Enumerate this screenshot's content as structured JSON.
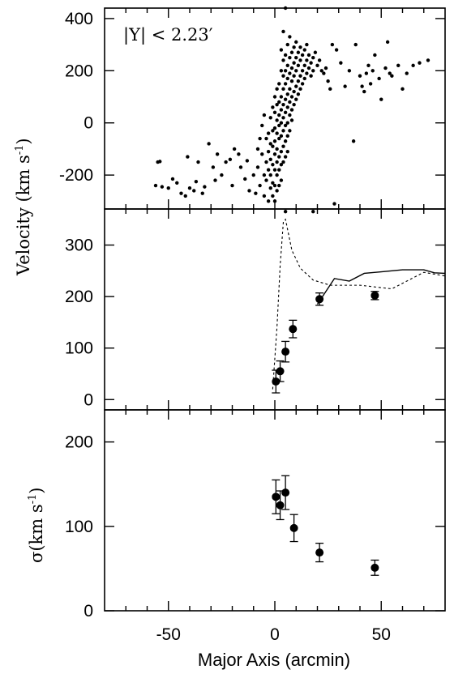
{
  "chart_data": [
    {
      "type": "scatter",
      "panel": "top",
      "annotation": "|Y| < 2.23′",
      "xlim": [
        -80,
        80
      ],
      "ylim": [
        -330,
        440
      ],
      "yticks": [
        400,
        200,
        0,
        -200
      ],
      "ytick_labels": [
        "400",
        "200",
        "0",
        "-200"
      ],
      "ylabel_main": "Velocity (km s",
      "ylabel_sup": "-1",
      "ylabel_close": ")",
      "points": [
        [
          -55,
          -150
        ],
        [
          -54,
          -148
        ],
        [
          -56,
          -240
        ],
        [
          -53,
          -245
        ],
        [
          -50,
          -250
        ],
        [
          -48,
          -215
        ],
        [
          -46,
          -230
        ],
        [
          -44,
          -270
        ],
        [
          -42,
          -280
        ],
        [
          -41,
          -130
        ],
        [
          -40,
          -250
        ],
        [
          -38,
          -260
        ],
        [
          -37,
          -225
        ],
        [
          -36,
          -150
        ],
        [
          -34,
          -270
        ],
        [
          -33,
          -245
        ],
        [
          -31,
          -80
        ],
        [
          -29,
          -170
        ],
        [
          -28,
          -220
        ],
        [
          -27,
          -120
        ],
        [
          -25,
          -200
        ],
        [
          -23,
          -150
        ],
        [
          -21,
          -140
        ],
        [
          -20,
          -240
        ],
        [
          -19,
          -100
        ],
        [
          -17,
          -120
        ],
        [
          -16,
          -170
        ],
        [
          -14,
          -215
        ],
        [
          -13,
          -145
        ],
        [
          -12,
          -260
        ],
        [
          -10,
          -200
        ],
        [
          -9,
          -270
        ],
        [
          -8,
          -100
        ],
        [
          -8,
          -170
        ],
        [
          -7,
          -240
        ],
        [
          -7,
          -60
        ],
        [
          -6,
          -10
        ],
        [
          -6,
          -120
        ],
        [
          -5,
          -200
        ],
        [
          -5,
          30
        ],
        [
          -5,
          -280
        ],
        [
          -4,
          -150
        ],
        [
          -4,
          -60
        ],
        [
          -4,
          -220
        ],
        [
          -3,
          -300
        ],
        [
          -3,
          -40
        ],
        [
          -3,
          -110
        ],
        [
          -3,
          -180
        ],
        [
          -2,
          -250
        ],
        [
          -2,
          -80
        ],
        [
          -2,
          20
        ],
        [
          -2,
          -140
        ],
        [
          -2,
          -200
        ],
        [
          -1,
          -30
        ],
        [
          -1,
          -90
        ],
        [
          -1,
          -160
        ],
        [
          -1,
          -230
        ],
        [
          -1,
          -280
        ],
        [
          -1,
          60
        ],
        [
          0,
          -20
        ],
        [
          0,
          -70
        ],
        [
          0,
          -120
        ],
        [
          0,
          -180
        ],
        [
          0,
          -240
        ],
        [
          0,
          40
        ],
        [
          0,
          100
        ],
        [
          0,
          -300
        ],
        [
          1,
          10
        ],
        [
          1,
          -40
        ],
        [
          1,
          -100
        ],
        [
          1,
          -150
        ],
        [
          1,
          -200
        ],
        [
          1,
          70
        ],
        [
          1,
          130
        ],
        [
          1,
          -260
        ],
        [
          2,
          -10
        ],
        [
          2,
          -60
        ],
        [
          2,
          30
        ],
        [
          2,
          80
        ],
        [
          2,
          -130
        ],
        [
          2,
          -180
        ],
        [
          2,
          150
        ],
        [
          2,
          -240
        ],
        [
          3,
          0
        ],
        [
          3,
          50
        ],
        [
          3,
          -50
        ],
        [
          3,
          100
        ],
        [
          3,
          -110
        ],
        [
          3,
          -160
        ],
        [
          3,
          200
        ],
        [
          3,
          280
        ],
        [
          3,
          -220
        ],
        [
          4,
          20
        ],
        [
          4,
          70
        ],
        [
          4,
          -30
        ],
        [
          4,
          130
        ],
        [
          4,
          -90
        ],
        [
          4,
          180
        ],
        [
          4,
          -150
        ],
        [
          4,
          240
        ],
        [
          4,
          350
        ],
        [
          5,
          40
        ],
        [
          5,
          90
        ],
        [
          5,
          -10
        ],
        [
          5,
          150
        ],
        [
          5,
          -70
        ],
        [
          5,
          200
        ],
        [
          5,
          -130
        ],
        [
          5,
          260
        ],
        [
          5,
          440
        ],
        [
          6,
          60
        ],
        [
          6,
          110
        ],
        [
          6,
          0
        ],
        [
          6,
          170
        ],
        [
          6,
          -50
        ],
        [
          6,
          220
        ],
        [
          6,
          300
        ],
        [
          6,
          -110
        ],
        [
          7,
          80
        ],
        [
          7,
          130
        ],
        [
          7,
          30
        ],
        [
          7,
          190
        ],
        [
          7,
          250
        ],
        [
          7,
          -30
        ],
        [
          7,
          330
        ],
        [
          8,
          100
        ],
        [
          8,
          160
        ],
        [
          8,
          50
        ],
        [
          8,
          210
        ],
        [
          8,
          270
        ],
        [
          8,
          10
        ],
        [
          9,
          120
        ],
        [
          9,
          180
        ],
        [
          9,
          230
        ],
        [
          9,
          70
        ],
        [
          9,
          290
        ],
        [
          10,
          140
        ],
        [
          10,
          200
        ],
        [
          10,
          90
        ],
        [
          10,
          250
        ],
        [
          10,
          310
        ],
        [
          11,
          160
        ],
        [
          11,
          220
        ],
        [
          11,
          110
        ],
        [
          11,
          270
        ],
        [
          12,
          180
        ],
        [
          12,
          240
        ],
        [
          12,
          130
        ],
        [
          12,
          290
        ],
        [
          13,
          200
        ],
        [
          13,
          260
        ],
        [
          13,
          150
        ],
        [
          14,
          220
        ],
        [
          14,
          170
        ],
        [
          14,
          280
        ],
        [
          15,
          190
        ],
        [
          15,
          240
        ],
        [
          15,
          300
        ],
        [
          16,
          210
        ],
        [
          16,
          260
        ],
        [
          17,
          230
        ],
        [
          17,
          180
        ],
        [
          18,
          250
        ],
        [
          18,
          200
        ],
        [
          18,
          -340
        ],
        [
          19,
          270
        ],
        [
          20,
          220
        ],
        [
          21,
          240
        ],
        [
          22,
          200
        ],
        [
          23,
          190
        ],
        [
          24,
          210
        ],
        [
          25,
          160
        ],
        [
          26,
          130
        ],
        [
          27,
          300
        ],
        [
          28,
          -310
        ],
        [
          29,
          280
        ],
        [
          31,
          230
        ],
        [
          33,
          140
        ],
        [
          35,
          200
        ],
        [
          37,
          -70
        ],
        [
          38,
          300
        ],
        [
          40,
          180
        ],
        [
          41,
          140
        ],
        [
          42,
          120
        ],
        [
          43,
          190
        ],
        [
          44,
          220
        ],
        [
          45,
          150
        ],
        [
          46,
          200
        ],
        [
          47,
          260
        ],
        [
          49,
          170
        ],
        [
          50,
          90
        ],
        [
          52,
          210
        ],
        [
          53,
          310
        ],
        [
          54,
          190
        ],
        [
          55,
          180
        ],
        [
          58,
          220
        ],
        [
          60,
          130
        ],
        [
          62,
          190
        ],
        [
          65,
          220
        ],
        [
          68,
          230
        ],
        [
          72,
          240
        ],
        [
          5,
          -340
        ]
      ]
    },
    {
      "type": "line",
      "panel": "middle",
      "xlim": [
        -80,
        80
      ],
      "ylim": [
        -20,
        370
      ],
      "yticks": [
        300,
        200,
        100,
        0
      ],
      "ytick_labels": [
        "300",
        "200",
        "100",
        "0"
      ],
      "ylabel": "Velocity",
      "points": [
        {
          "x": 0.5,
          "y": 35,
          "err": 22
        },
        {
          "x": 2.5,
          "y": 55,
          "err": 20
        },
        {
          "x": 5,
          "y": 93,
          "err": 20
        },
        {
          "x": 8.5,
          "y": 137,
          "err": 17
        },
        {
          "x": 21,
          "y": 195,
          "err": 12
        },
        {
          "x": 47,
          "y": 202,
          "err": 8
        }
      ],
      "solid_curve": [
        [
          20,
          185
        ],
        [
          28,
          235
        ],
        [
          35,
          230
        ],
        [
          42,
          245
        ],
        [
          50,
          248
        ],
        [
          60,
          252
        ],
        [
          70,
          252
        ],
        [
          75,
          246
        ],
        [
          80,
          245
        ]
      ],
      "dashed_curve": [
        [
          -1,
          20
        ],
        [
          1,
          140
        ],
        [
          2.5,
          260
        ],
        [
          4,
          345
        ],
        [
          5,
          350
        ],
        [
          8,
          290
        ],
        [
          12,
          255
        ],
        [
          18,
          232
        ],
        [
          26,
          222
        ],
        [
          40,
          222
        ],
        [
          55,
          215
        ],
        [
          70,
          247
        ],
        [
          80,
          240
        ]
      ]
    },
    {
      "type": "scatter",
      "panel": "bottom",
      "xlim": [
        -80,
        80
      ],
      "ylim": [
        0,
        238
      ],
      "xticks": [
        -50,
        0,
        50
      ],
      "xtick_labels": [
        "-50",
        "0",
        "50"
      ],
      "yticks": [
        200,
        100,
        0
      ],
      "ytick_labels": [
        "200",
        "100",
        "0"
      ],
      "ylabel_main": "σ(km s",
      "ylabel_sup": "-1",
      "ylabel_close": ")",
      "xlabel": "Major Axis (arcmin)",
      "points": [
        {
          "x": 0.5,
          "y": 135,
          "err": 20
        },
        {
          "x": 2.5,
          "y": 125,
          "err": 17
        },
        {
          "x": 5,
          "y": 140,
          "err": 20
        },
        {
          "x": 9,
          "y": 98,
          "err": 16
        },
        {
          "x": 21,
          "y": 69,
          "err": 11
        },
        {
          "x": 47,
          "y": 51,
          "err": 9
        }
      ]
    }
  ]
}
